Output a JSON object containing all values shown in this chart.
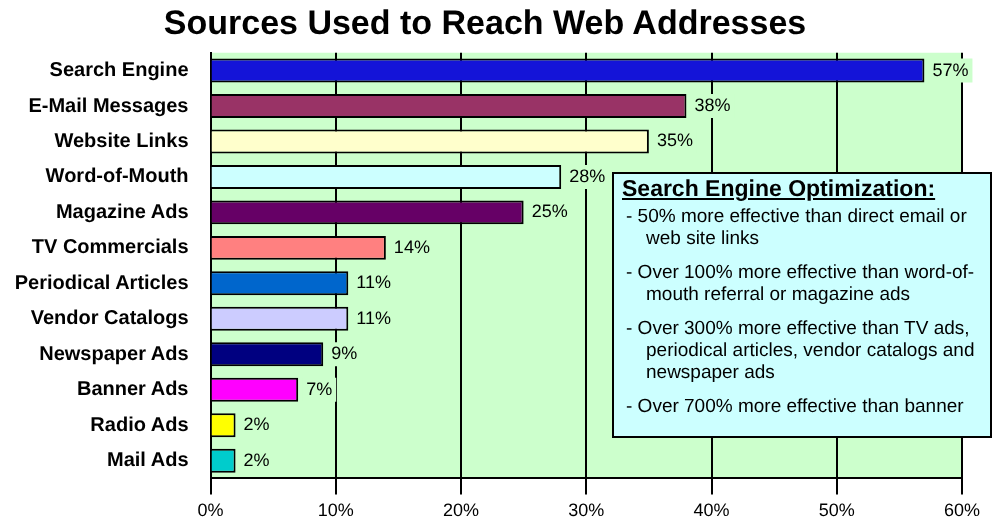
{
  "chart_data": {
    "type": "bar",
    "orientation": "horizontal",
    "title": "Sources Used to Reach Web Addresses",
    "categories": [
      "Search Engine",
      "E-Mail Messages",
      "Website Links",
      "Word-of-Mouth",
      "Magazine Ads",
      "TV Commercials",
      "Periodical Articles",
      "Vendor Catalogs",
      "Newspaper Ads",
      "Banner Ads",
      "Radio Ads",
      "Mail Ads"
    ],
    "values": [
      57,
      38,
      35,
      28,
      25,
      14,
      11,
      11,
      9,
      7,
      2,
      2
    ],
    "colors": [
      "#1414d8",
      "#993366",
      "#ffffcc",
      "#ccffff",
      "#660066",
      "#ff8080",
      "#0066cc",
      "#ccccff",
      "#000080",
      "#ff00ff",
      "#ffff00",
      "#00cccc"
    ],
    "value_labels": [
      "57%",
      "38%",
      "35%",
      "28%",
      "25%",
      "14%",
      "11%",
      "11%",
      "9%",
      "7%",
      "2%",
      "2%"
    ],
    "xlim": [
      0,
      60
    ],
    "xticks": [
      {
        "value": 0,
        "label": "0%"
      },
      {
        "value": 10,
        "label": "10%"
      },
      {
        "value": 20,
        "label": "20%"
      },
      {
        "value": 30,
        "label": "30%"
      },
      {
        "value": 40,
        "label": "40%"
      },
      {
        "value": 50,
        "label": "50%"
      },
      {
        "value": 60,
        "label": "60%"
      }
    ],
    "grid": "x",
    "legend": false,
    "annotations": [
      "Search Engine Optimization:",
      "- 50% more effective than direct email or web site links",
      "- Over 100% more effective than word-of-mouth referral or magazine ads",
      "- Over 300% more effective than TV ads, periodical articles, vendor catalogs and newspaper ads",
      "- Over 700% more effective than banner"
    ]
  }
}
